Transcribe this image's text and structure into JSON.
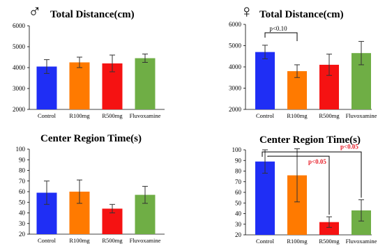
{
  "chart_data": [
    {
      "type": "bar",
      "panel": "male-total-distance",
      "symbol": "♂",
      "title": "Total Distance(cm)",
      "categories": [
        "Control",
        "R100mg",
        "R500mg",
        "Fluvoxamine"
      ],
      "values": [
        4050,
        4250,
        4200,
        4450
      ],
      "errors": [
        330,
        250,
        400,
        200
      ],
      "colors": [
        "#1f2ef5",
        "#ff7a00",
        "#f51212",
        "#6fae45"
      ],
      "ylim": [
        2000,
        6000
      ],
      "yticks": [
        "2000",
        "3000",
        "4000",
        "5000",
        "6000"
      ],
      "annotations": []
    },
    {
      "type": "bar",
      "panel": "female-total-distance",
      "symbol": "♀",
      "title": "Total Distance(cm)",
      "categories": [
        "Control",
        "R100mg",
        "R500mg",
        "Fluvoxamine"
      ],
      "values": [
        4700,
        3800,
        4100,
        4650
      ],
      "errors": [
        320,
        300,
        500,
        550
      ],
      "colors": [
        "#1f2ef5",
        "#ff7a00",
        "#f51212",
        "#6fae45"
      ],
      "ylim": [
        2000,
        6000
      ],
      "yticks": [
        "2000",
        "3000",
        "4000",
        "5000",
        "6000"
      ],
      "annotations": [
        {
          "text": "p<0.10",
          "color": "#000000",
          "from": "Control",
          "to": "R100mg"
        }
      ]
    },
    {
      "type": "bar",
      "panel": "male-center-region-time",
      "title": "Center Region Time(s)",
      "categories": [
        "Control",
        "R100mg",
        "R500mg",
        "Fluvoxamine"
      ],
      "values": [
        59,
        60,
        44,
        57
      ],
      "errors": [
        11,
        11,
        4,
        8
      ],
      "colors": [
        "#1f2ef5",
        "#ff7a00",
        "#f51212",
        "#6fae45"
      ],
      "ylim": [
        20,
        100
      ],
      "yticks": [
        "20",
        "30",
        "40",
        "50",
        "60",
        "70",
        "80",
        "90",
        "100"
      ],
      "annotations": []
    },
    {
      "type": "bar",
      "panel": "female-center-region-time",
      "title": "Center Region Time(s)",
      "categories": [
        "Control",
        "R100mg",
        "R500mg",
        "Fluvoxamine"
      ],
      "values": [
        89,
        76,
        32,
        43
      ],
      "errors": [
        11,
        25,
        5,
        10
      ],
      "colors": [
        "#1f2ef5",
        "#ff7a00",
        "#f51212",
        "#6fae45"
      ],
      "ylim": [
        20,
        100
      ],
      "yticks": [
        "20",
        "30",
        "40",
        "50",
        "60",
        "70",
        "80",
        "90",
        "100"
      ],
      "annotations": [
        {
          "text": "p<0.05",
          "color": "#e8202a",
          "from": "Control",
          "to": "R500mg"
        },
        {
          "text": "p<0.05",
          "color": "#e8202a",
          "from": "Control",
          "to": "Fluvoxamine"
        }
      ]
    }
  ]
}
